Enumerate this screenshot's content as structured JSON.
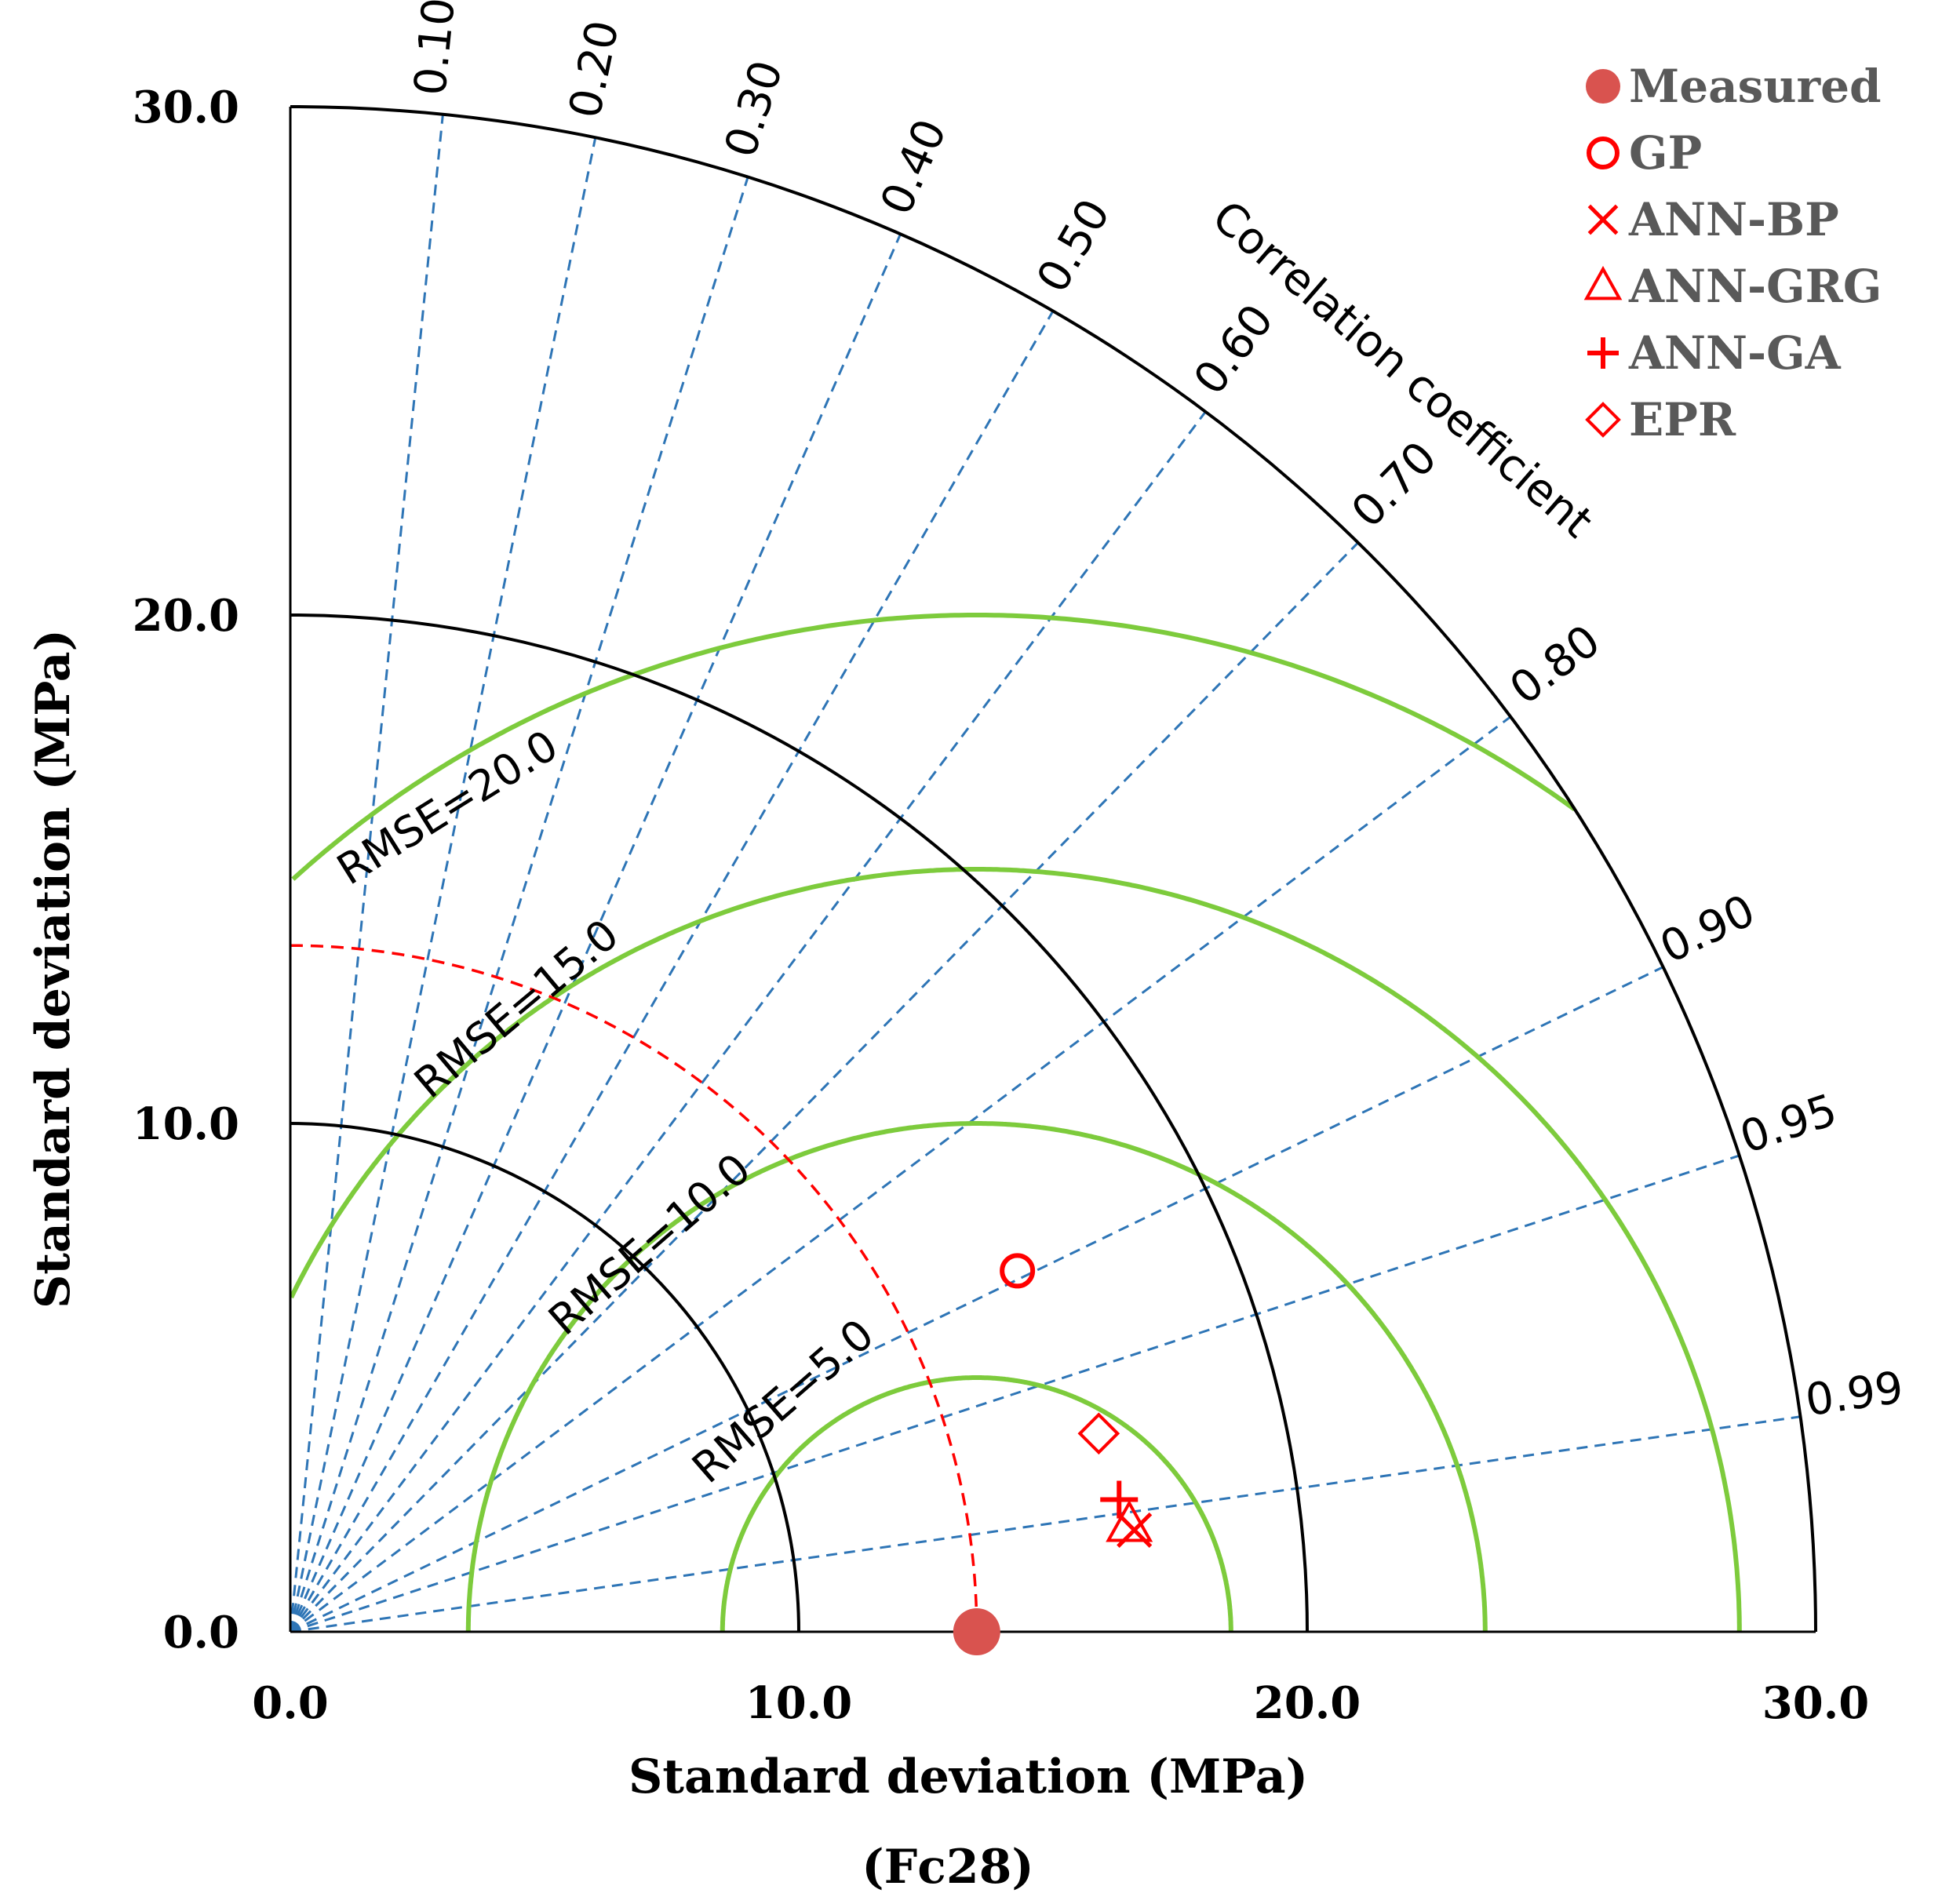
{
  "chart_data": {
    "type": "taylor",
    "caption": "(Fc28)",
    "xlabel": "Standard deviation (MPa)",
    "ylabel": "Standard deviation (MPa)",
    "xlim": [
      0,
      30
    ],
    "ylim": [
      0,
      30
    ],
    "x_ticks": [
      "0.0",
      "10.0",
      "20.0",
      "30.0"
    ],
    "y_ticks": [
      "0.0",
      "10.0",
      "20.0",
      "30.0"
    ],
    "x_tick_values": [
      0,
      10,
      20,
      30
    ],
    "y_tick_values": [
      0,
      10,
      20,
      30
    ],
    "std_arcs": [
      10,
      20,
      30
    ],
    "reference_std": 13.5,
    "correlation_title": "Correlation coefficient",
    "correlation_values": [
      0.1,
      0.2,
      0.3,
      0.4,
      0.5,
      0.6,
      0.7,
      0.8,
      0.9,
      0.95,
      0.99
    ],
    "correlation_labels": [
      "0.10",
      "0.20",
      "0.30",
      "0.40",
      "0.50",
      "0.60",
      "0.70",
      "0.80",
      "0.90",
      "0.95",
      "0.99"
    ],
    "rmse_values": [
      5,
      10,
      15,
      20
    ],
    "rmse_labels": [
      "RMSE=5.0",
      "RMSE=10.0",
      "RMSE=15.0",
      "RMSE=20.0"
    ],
    "legend_position": "top-right",
    "series": [
      {
        "name": "Measured",
        "marker": "filled-circle",
        "x": 13.5,
        "y": 0.0
      },
      {
        "name": "GP",
        "marker": "circle",
        "x": 14.3,
        "y": 7.1
      },
      {
        "name": "ANN-BP",
        "marker": "x",
        "x": 16.6,
        "y": 2.0
      },
      {
        "name": "ANN-GRG",
        "marker": "triangle",
        "x": 16.5,
        "y": 2.1
      },
      {
        "name": "ANN-GA",
        "marker": "plus",
        "x": 16.3,
        "y": 2.6
      },
      {
        "name": "EPR",
        "marker": "diamond",
        "x": 15.9,
        "y": 3.9
      }
    ],
    "colors": {
      "axes": "#000000",
      "correlation_lines": "#2E75B6",
      "rmse_arcs": "#7DCB3C",
      "reference_arc": "#FF0000",
      "markers": "#FF0000",
      "measured": "#D9534F",
      "legend_text": "#595959"
    }
  }
}
